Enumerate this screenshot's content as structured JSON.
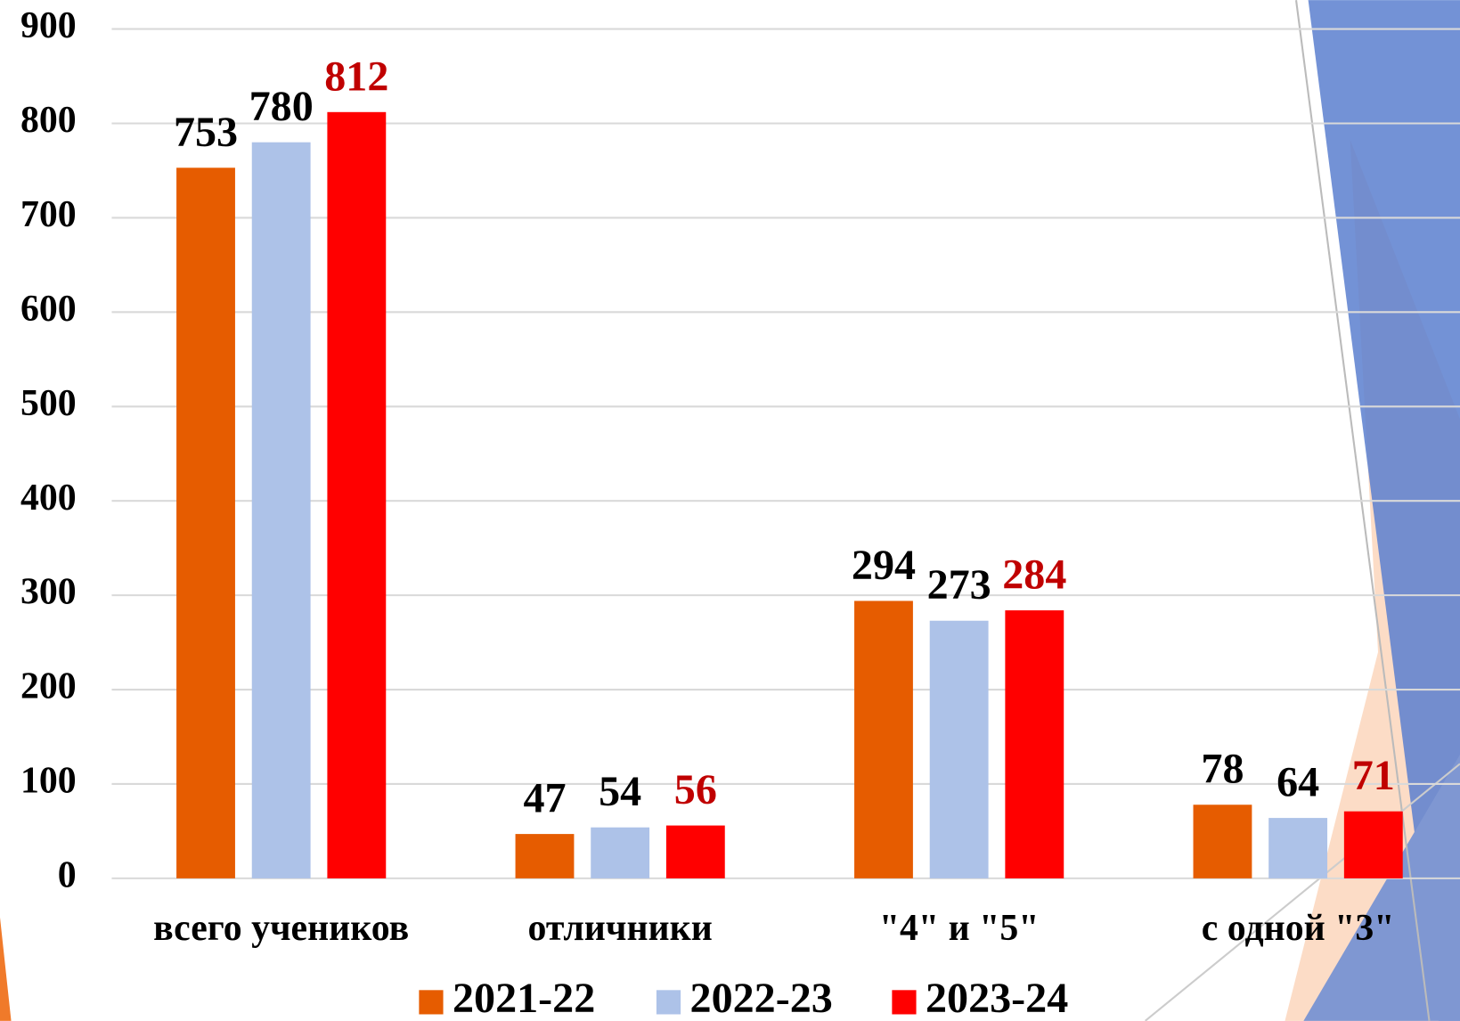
{
  "chart_data": {
    "type": "bar",
    "categories": [
      "всего учеников",
      "отличники",
      "\"4\" и \"5\"",
      "с одной \"3\""
    ],
    "series": [
      {
        "name": "2021-22",
        "color": "#e65c00",
        "label_color": "#000000",
        "values": [
          753,
          47,
          294,
          78
        ]
      },
      {
        "name": "2022-23",
        "color": "#adc2e8",
        "label_color": "#000000",
        "values": [
          780,
          54,
          273,
          64
        ]
      },
      {
        "name": "2023-24",
        "color": "#ff0000",
        "label_color": "#c00000",
        "values": [
          812,
          56,
          284,
          71
        ]
      }
    ],
    "ylim": [
      0,
      900
    ],
    "yticks": [
      0,
      100,
      200,
      300,
      400,
      500,
      600,
      700,
      800,
      900
    ],
    "grid": true,
    "legend": "bottom"
  }
}
